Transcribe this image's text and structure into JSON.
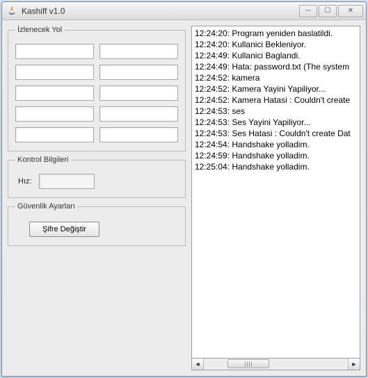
{
  "window": {
    "title": "Kashiff v1.0"
  },
  "groups": {
    "izlenecek_yol": "İzlenecek Yol",
    "kontrol": "Kontrol Bilgileri",
    "guvenlik": "Güvenlik Ayarları"
  },
  "kontrol": {
    "hiz_label": "Hız:",
    "hiz_value": ""
  },
  "buttons": {
    "sifre_degistir": "Şifre Değiştir"
  },
  "path_inputs": [
    "",
    "",
    "",
    "",
    "",
    "",
    "",
    "",
    "",
    ""
  ],
  "log_lines": [
    "12:24:20: Program yeniden baslatildi.",
    "12:24:20: Kullanici Bekleniyor.",
    "12:24:49: Kullanici Baglandi.",
    "12:24:49: Hata: password.txt (The system",
    "12:24:52: kamera",
    "12:24:52: Kamera Yayini Yapiliyor...",
    "12:24:52: Kamera Hatasi : Couldn't create",
    "12:24:53: ses",
    "12:24:53: Ses Yayini Yapiliyor...",
    "12:24:53: Ses Hatasi : Couldn't create Dat",
    "12:24:54: Handshake yolladim.",
    "12:24:59: Handshake yolladim.",
    "12:25:04: Handshake yolladim."
  ],
  "colors": {
    "window_bg": "#ececec",
    "border": "#9c9c9c",
    "text": "#000000"
  }
}
